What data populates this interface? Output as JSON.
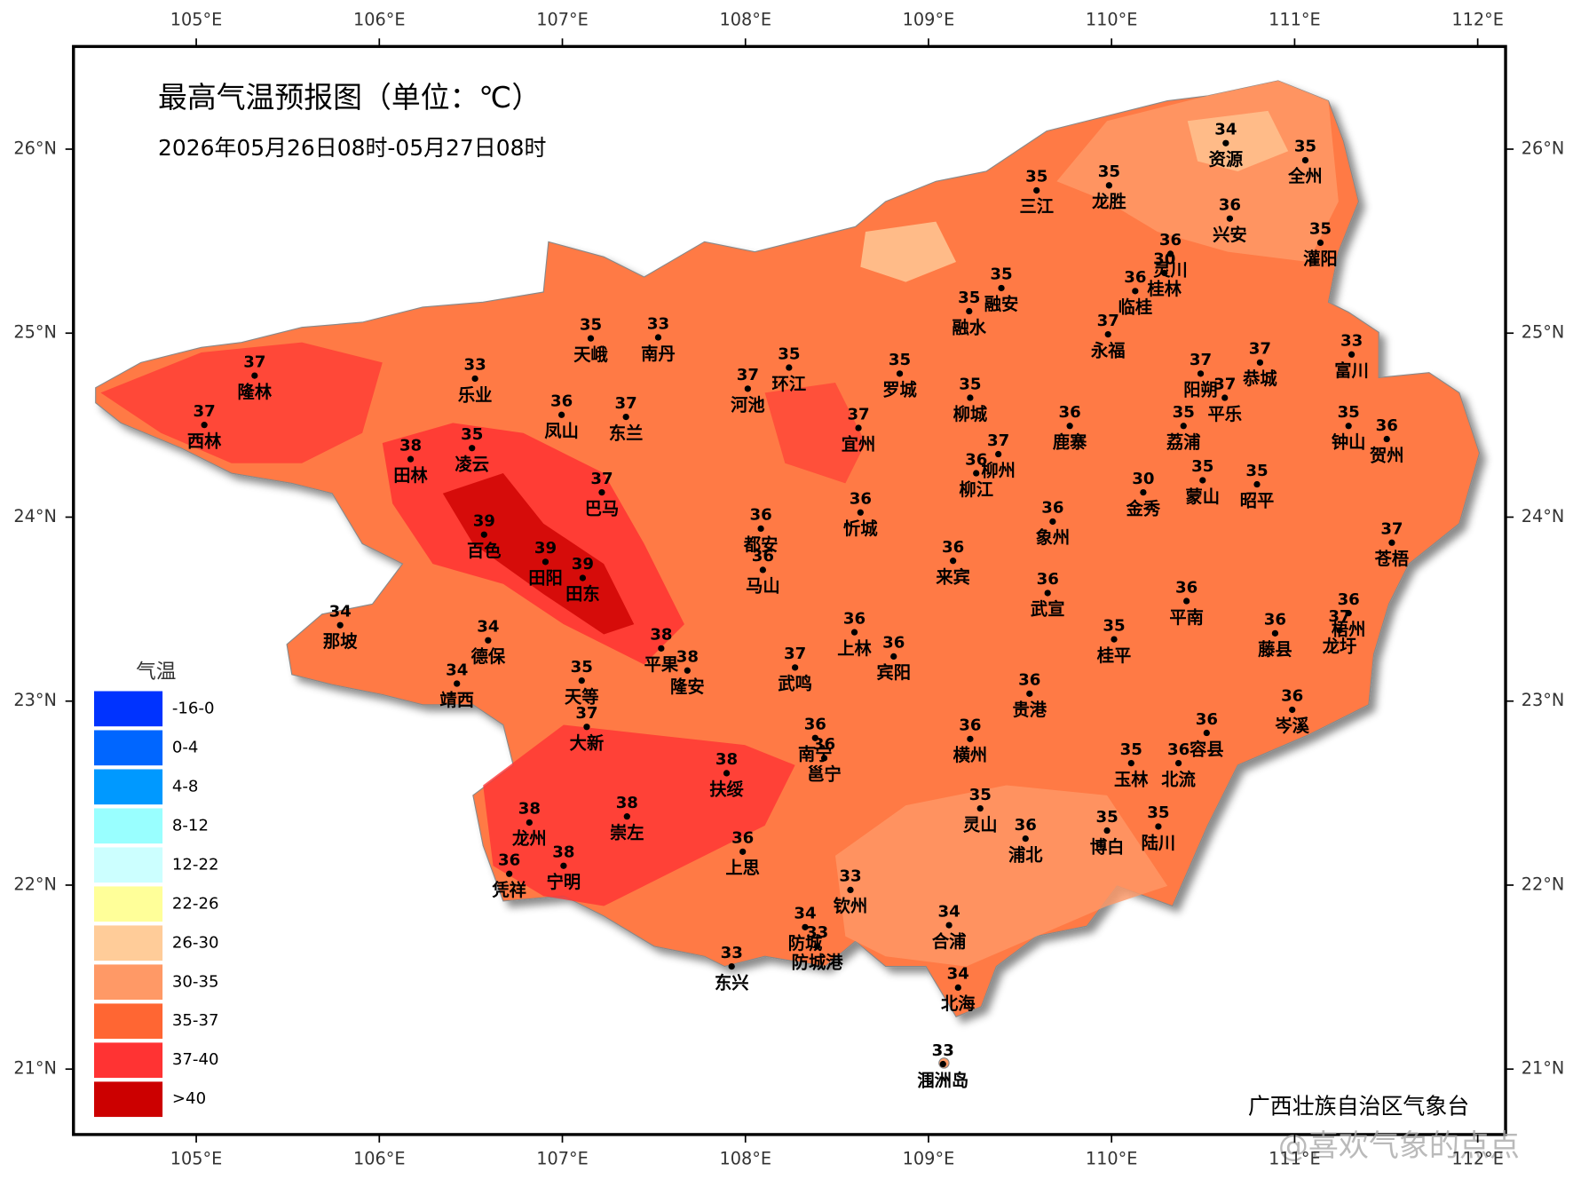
{
  "header": {
    "title": "最高气温预报图（单位：℃）",
    "subtitle": "2026年05月26日08时-05月27日08时"
  },
  "lon_ticks": [
    {
      "value": 105,
      "label": "105°E"
    },
    {
      "value": 106,
      "label": "106°E"
    },
    {
      "value": 107,
      "label": "107°E"
    },
    {
      "value": 108,
      "label": "108°E"
    },
    {
      "value": 109,
      "label": "109°E"
    },
    {
      "value": 110,
      "label": "110°E"
    },
    {
      "value": 111,
      "label": "111°E"
    },
    {
      "value": 112,
      "label": "112°E"
    }
  ],
  "lat_ticks": [
    {
      "value": 26,
      "label": "26°N"
    },
    {
      "value": 25,
      "label": "25°N"
    },
    {
      "value": 24,
      "label": "24°N"
    },
    {
      "value": 23,
      "label": "23°N"
    },
    {
      "value": 22,
      "label": "22°N"
    },
    {
      "value": 21,
      "label": "21°N"
    }
  ],
  "legend": {
    "title": "气温",
    "items": [
      {
        "label": "-16-0",
        "color": "#0033ff"
      },
      {
        "label": "0-4",
        "color": "#0066ff"
      },
      {
        "label": "4-8",
        "color": "#0099ff"
      },
      {
        "label": "8-12",
        "color": "#99ffff"
      },
      {
        "label": "12-22",
        "color": "#ccffff"
      },
      {
        "label": "22-26",
        "color": "#ffff99"
      },
      {
        "label": "26-30",
        "color": "#ffcc99"
      },
      {
        "label": "30-35",
        "color": "#ff9966"
      },
      {
        "label": "35-37",
        "color": "#ff6633"
      },
      {
        "label": "37-40",
        "color": "#ff3333"
      },
      {
        "label": ">40",
        "color": "#cc0000"
      }
    ]
  },
  "stations": [
    {
      "name": "资源",
      "value": 34
    },
    {
      "name": "全州",
      "value": 35
    },
    {
      "name": "三江",
      "value": 35
    },
    {
      "name": "龙胜",
      "value": 35
    },
    {
      "name": "兴安",
      "value": 36
    },
    {
      "name": "灌阳",
      "value": 35
    },
    {
      "name": "灵川",
      "value": 36
    },
    {
      "name": "桂林",
      "value": 30
    },
    {
      "name": "临桂",
      "value": 36
    },
    {
      "name": "融安",
      "value": 35
    },
    {
      "name": "融水",
      "value": 35
    },
    {
      "name": "永福",
      "value": 37
    },
    {
      "name": "天峨",
      "value": 35
    },
    {
      "name": "南丹",
      "value": 33
    },
    {
      "name": "隆林",
      "value": 37
    },
    {
      "name": "乐业",
      "value": 33
    },
    {
      "name": "环江",
      "value": 35
    },
    {
      "name": "河池",
      "value": 37
    },
    {
      "name": "罗城",
      "value": 35
    },
    {
      "name": "柳城",
      "value": 35
    },
    {
      "name": "阳朔",
      "value": 37
    },
    {
      "name": "恭城",
      "value": 37
    },
    {
      "name": "富川",
      "value": 33
    },
    {
      "name": "平乐",
      "value": 37
    },
    {
      "name": "西林",
      "value": 37
    },
    {
      "name": "凤山",
      "value": 36
    },
    {
      "name": "东兰",
      "value": 37
    },
    {
      "name": "宜州",
      "value": 37
    },
    {
      "name": "鹿寨",
      "value": 36
    },
    {
      "name": "荔浦",
      "value": 35
    },
    {
      "name": "钟山",
      "value": 35
    },
    {
      "name": "贺州",
      "value": 36
    },
    {
      "name": "田林",
      "value": 38
    },
    {
      "name": "凌云",
      "value": 35
    },
    {
      "name": "柳州",
      "value": 37
    },
    {
      "name": "柳江",
      "value": 36
    },
    {
      "name": "金秀",
      "value": 30
    },
    {
      "name": "蒙山",
      "value": 35
    },
    {
      "name": "昭平",
      "value": 35
    },
    {
      "name": "巴马",
      "value": 37
    },
    {
      "name": "忻城",
      "value": 36
    },
    {
      "name": "象州",
      "value": 36
    },
    {
      "name": "百色",
      "value": 39
    },
    {
      "name": "都安",
      "value": 36
    },
    {
      "name": "苍梧",
      "value": 37
    },
    {
      "name": "田阳",
      "value": 39
    },
    {
      "name": "田东",
      "value": 39
    },
    {
      "name": "马山",
      "value": 36
    },
    {
      "name": "来宾",
      "value": 36
    },
    {
      "name": "武宣",
      "value": 36
    },
    {
      "name": "平南",
      "value": 36
    },
    {
      "name": "那坡",
      "value": 34
    },
    {
      "name": "德保",
      "value": 34
    },
    {
      "name": "上林",
      "value": 36
    },
    {
      "name": "宾阳",
      "value": 36
    },
    {
      "name": "桂平",
      "value": 35
    },
    {
      "name": "藤县",
      "value": 36
    },
    {
      "name": "梧州",
      "value": 36
    },
    {
      "name": "龙圩",
      "value": 37
    },
    {
      "name": "平果",
      "value": 38
    },
    {
      "name": "隆安",
      "value": 38
    },
    {
      "name": "武鸣",
      "value": 37
    },
    {
      "name": "靖西",
      "value": 34
    },
    {
      "name": "天等",
      "value": 35
    },
    {
      "name": "贵港",
      "value": 36
    },
    {
      "name": "大新",
      "value": 37
    },
    {
      "name": "南宁",
      "value": 36
    },
    {
      "name": "邕宁",
      "value": 36
    },
    {
      "name": "横州",
      "value": 36
    },
    {
      "name": "岑溪",
      "value": 36
    },
    {
      "name": "容县",
      "value": 36
    },
    {
      "name": "玉林",
      "value": 35
    },
    {
      "name": "北流",
      "value": 36
    },
    {
      "name": "扶绥",
      "value": 38
    },
    {
      "name": "灵山",
      "value": 35
    },
    {
      "name": "龙州",
      "value": 38
    },
    {
      "name": "崇左",
      "value": 38
    },
    {
      "name": "浦北",
      "value": 36
    },
    {
      "name": "博白",
      "value": 35
    },
    {
      "name": "陆川",
      "value": 35
    },
    {
      "name": "上思",
      "value": 36
    },
    {
      "name": "宁明",
      "value": 38
    },
    {
      "name": "凭祥",
      "value": 36
    },
    {
      "name": "钦州",
      "value": 33
    },
    {
      "name": "防城",
      "value": 34
    },
    {
      "name": "防城港",
      "value": 33
    },
    {
      "name": "合浦",
      "value": 34
    },
    {
      "name": "东兴",
      "value": 33
    },
    {
      "name": "北海",
      "value": 34
    },
    {
      "name": "涠洲岛",
      "value": 33
    }
  ],
  "footer": {
    "credit": "广西壮族自治区气象台",
    "watermark": "@喜欢气象的点点"
  }
}
